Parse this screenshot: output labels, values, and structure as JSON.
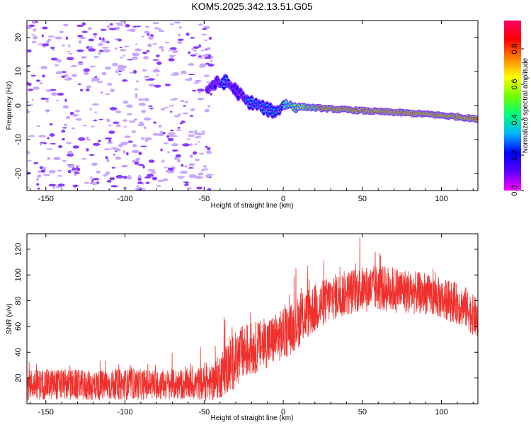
{
  "title": "KOM5.2025.342.13.51.G05",
  "colors": {
    "snr_line": "#f0302c",
    "axes": "#000000",
    "background": "#ffffff"
  },
  "chart_data": [
    {
      "type": "heatmap",
      "name": "spectrogram",
      "xlabel": "Height of straight line (km)",
      "ylabel": "Frequency (Hz)",
      "xlim": [
        -162,
        123
      ],
      "ylim": [
        -25,
        25
      ],
      "xticks": [
        -150,
        -100,
        -50,
        0,
        50,
        100
      ],
      "yticks": [
        -20,
        -10,
        0,
        10,
        20
      ],
      "colorbar": {
        "label": "Normalized spectral amplitude",
        "range": [
          0.0,
          0.96
        ],
        "ticks": [
          0.0,
          0.2,
          0.4,
          0.6,
          0.8
        ],
        "colormap": [
          "#ff00ff",
          "#5a00ff",
          "#0000ff",
          "#00b4ff",
          "#00ff80",
          "#70ff00",
          "#ffff00",
          "#ff8000",
          "#ff0000",
          "#ff0066"
        ]
      },
      "track": {
        "description": "dominant spectral ridge (frequency vs height)",
        "x": [
          -48,
          -42,
          -36,
          -30,
          -24,
          -18,
          -10,
          -4,
          0,
          5,
          15,
          30,
          50,
          70,
          90,
          110,
          123
        ],
        "y": [
          5,
          6.5,
          7,
          4.5,
          1.5,
          0.5,
          -1.2,
          -1.8,
          0.5,
          0,
          -0.5,
          -1,
          -1.5,
          -2,
          -2.5,
          -3.3,
          -4
        ],
        "amplitude": [
          0.22,
          0.25,
          0.3,
          0.2,
          0.28,
          0.32,
          0.35,
          0.4,
          0.45,
          0.55,
          0.75,
          0.9,
          0.95,
          0.95,
          0.9,
          0.9,
          0.85
        ]
      },
      "background_noise": {
        "x_range": [
          -162,
          -45
        ],
        "y_range": [
          -25,
          25
        ],
        "amplitude_range": [
          0.0,
          0.15
        ]
      }
    },
    {
      "type": "line",
      "name": "snr",
      "xlabel": "Height of straight line (km)",
      "ylabel": "SNR (v/v)",
      "xlim": [
        -162,
        123
      ],
      "ylim": [
        0,
        132
      ],
      "xticks": [
        -150,
        -100,
        -50,
        0,
        50,
        100
      ],
      "yticks": [
        20,
        40,
        60,
        80,
        100,
        120
      ],
      "envelope": {
        "description": "approximate mean SNR and noise spread vs height",
        "x": [
          -162,
          -140,
          -120,
          -100,
          -80,
          -60,
          -45,
          -35,
          -25,
          -15,
          -5,
          5,
          15,
          30,
          45,
          60,
          75,
          90,
          105,
          115,
          123
        ],
        "mean": [
          15,
          15,
          14,
          15,
          15,
          15,
          16,
          28,
          40,
          45,
          50,
          58,
          70,
          82,
          88,
          90,
          88,
          85,
          80,
          75,
          65
        ],
        "spread": [
          12,
          12,
          12,
          12,
          12,
          12,
          14,
          22,
          22,
          20,
          20,
          20,
          20,
          18,
          18,
          18,
          18,
          16,
          16,
          16,
          16
        ]
      }
    }
  ]
}
